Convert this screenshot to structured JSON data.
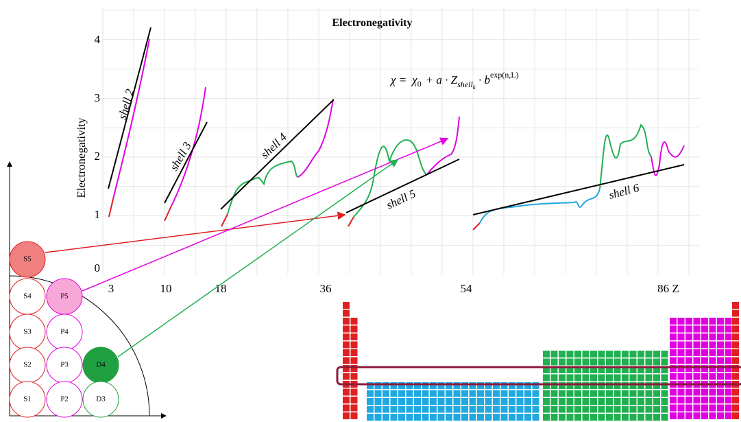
{
  "title": "Electronegativity",
  "y_axis_label": "Electronegativity",
  "y_ticks": [
    "4",
    "3",
    "2",
    "1",
    "0"
  ],
  "x_ticks": [
    "3",
    "10",
    "18",
    "36",
    "54",
    "86 Z"
  ],
  "formula": {
    "lhs": "χ =",
    "chi0": "χ",
    "chi0_sub": "0",
    "plus": "+ a · Z",
    "z_sub": "shell",
    "z_subsub": "k",
    "times": " · b",
    "exponent": "exp(n,L)"
  },
  "shell_labels": [
    "shell 2",
    "shell 3",
    "shell 4",
    "shell 5",
    "shell 6"
  ],
  "orbitals": [
    "S5",
    "S4",
    "P5",
    "S3",
    "P4",
    "S2",
    "P3",
    "D4",
    "S1",
    "P2",
    "D3"
  ]
}
